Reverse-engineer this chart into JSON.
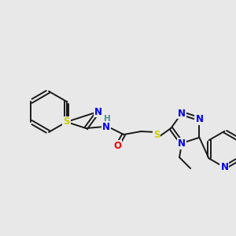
{
  "bg_color": "#e8e8e8",
  "bond_color": "#1a1a1a",
  "atom_colors": {
    "S": "#cccc00",
    "N": "#0000ee",
    "O": "#ee0000",
    "H": "#4a9090",
    "C": "#1a1a1a"
  },
  "figsize": [
    3.0,
    3.0
  ],
  "dpi": 100,
  "lw": 1.4,
  "fs": 8.0
}
